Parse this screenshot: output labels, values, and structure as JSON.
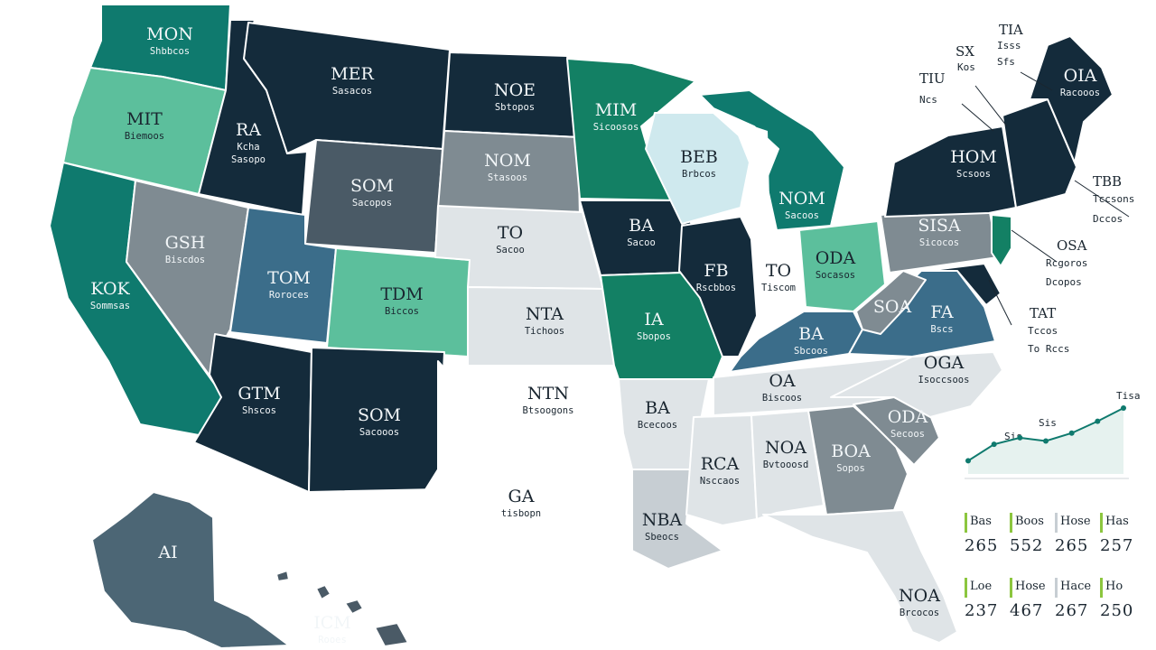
{
  "colors": {
    "navy": "#142b3b",
    "teal": "#0f7a6e",
    "green": "#138064",
    "mint": "#5cbf9c",
    "lightmint": "#cfe9ee",
    "steel": "#3b6d8a",
    "slate": "#4a5a66",
    "gray": "#7f8b92",
    "lightgray": "#c7ced3",
    "pale": "#dfe4e7",
    "alaska": "#4c6675",
    "lime": "#8cc63f"
  },
  "states": [
    {
      "id": "wa",
      "code": "MON",
      "sub": "Shbbcos",
      "color": "teal"
    },
    {
      "id": "or",
      "code": "MIT",
      "sub": "Biemoos",
      "color": "mint"
    },
    {
      "id": "ca",
      "code": "KOK",
      "sub": "Sommsas",
      "color": "teal"
    },
    {
      "id": "nv",
      "code": "GSH",
      "sub": "Biscdos",
      "color": "gray"
    },
    {
      "id": "id",
      "code": "RA",
      "sub": "Kcha",
      "sub2": "Sasopo",
      "color": "navy"
    },
    {
      "id": "mt",
      "code": "MER",
      "sub": "Sasacos",
      "color": "navy"
    },
    {
      "id": "wy",
      "code": "SOM",
      "sub": "Sacopos",
      "color": "slate"
    },
    {
      "id": "ut",
      "code": "TOM",
      "sub": "Roroces",
      "color": "steel"
    },
    {
      "id": "az",
      "code": "GTM",
      "sub": "Shscos",
      "color": "navy"
    },
    {
      "id": "co",
      "code": "TDM",
      "sub": "Biccos",
      "color": "mint"
    },
    {
      "id": "nm",
      "code": "SOM",
      "sub": "Sacooos",
      "color": "navy"
    },
    {
      "id": "nd",
      "code": "NOE",
      "sub": "Sbtopos",
      "color": "navy"
    },
    {
      "id": "sd",
      "code": "NOM",
      "sub": "Stasoos",
      "color": "gray"
    },
    {
      "id": "ne",
      "code": "TO",
      "sub": "Sacoo",
      "color": "pale"
    },
    {
      "id": "ks",
      "code": "NTA",
      "sub": "Tichoos",
      "color": "pale"
    },
    {
      "id": "ok",
      "code": "NTN",
      "sub": "Btsoogons",
      "color": "white"
    },
    {
      "id": "tx",
      "code": "GA",
      "sub": "tisbopn",
      "color": "white"
    },
    {
      "id": "mn",
      "code": "MIM",
      "sub": "Sicoosos",
      "color": "green"
    },
    {
      "id": "ia",
      "code": "BA",
      "sub": "Sacoo",
      "color": "navy"
    },
    {
      "id": "mo",
      "code": "IA",
      "sub": "Sbopos",
      "color": "green"
    },
    {
      "id": "ar",
      "code": "BA",
      "sub": "Bcecoos",
      "color": "pale"
    },
    {
      "id": "la",
      "code": "NBA",
      "sub": "Sbeocs",
      "color": "lightgray"
    },
    {
      "id": "wi",
      "code": "BEB",
      "sub": "Brbcos",
      "color": "lightmint"
    },
    {
      "id": "il",
      "code": "FB",
      "sub": "Rscbbos",
      "color": "navy"
    },
    {
      "id": "mi",
      "code": "NOM",
      "sub": "Sacoos",
      "color": "teal"
    },
    {
      "id": "in",
      "code": "TO",
      "sub": "Tiscom",
      "color": "white"
    },
    {
      "id": "oh",
      "code": "ODA",
      "sub": "Socasos",
      "color": "mint"
    },
    {
      "id": "ky",
      "code": "BA",
      "sub": "Sbcoos",
      "color": "steel"
    },
    {
      "id": "tn",
      "code": "OA",
      "sub": "Biscoos",
      "color": "pale"
    },
    {
      "id": "ms",
      "code": "RCA",
      "sub": "Nsccaos",
      "color": "pale"
    },
    {
      "id": "al",
      "code": "NOA",
      "sub": "Bvtooosd",
      "color": "pale"
    },
    {
      "id": "ga",
      "code": "BOA",
      "sub": "Sopos",
      "color": "gray"
    },
    {
      "id": "fl",
      "code": "NOA",
      "sub": "Brcocos",
      "color": "pale"
    },
    {
      "id": "sc",
      "code": "ODA",
      "sub": "Secoos",
      "color": "gray"
    },
    {
      "id": "nc",
      "code": "OGA",
      "sub": "Isoccsoos",
      "color": "pale"
    },
    {
      "id": "va",
      "code": "FA",
      "sub": "Bscs",
      "color": "steel"
    },
    {
      "id": "wv",
      "code": "SOA",
      "sub": "",
      "color": "gray"
    },
    {
      "id": "pa",
      "code": "SISA",
      "sub": "Sicocos",
      "color": "gray"
    },
    {
      "id": "ny",
      "code": "HOM",
      "sub": "Scsoos",
      "color": "navy"
    },
    {
      "id": "me",
      "code": "OIA",
      "sub": "Racooos",
      "color": "navy"
    },
    {
      "id": "ak",
      "code": "AI",
      "sub": "",
      "color": "alaska"
    },
    {
      "id": "hi",
      "code": "ICM",
      "sub": "Rooes",
      "color": "slate"
    }
  ],
  "annotations": [
    {
      "id": "ann-sx",
      "text": "SX",
      "sub": "Kos"
    },
    {
      "id": "ann-tia",
      "text": "TIA",
      "sub": "Isss",
      "sub2": "Sfs"
    },
    {
      "id": "ann-tiu",
      "text": "TIU",
      "sub": "Ncs"
    },
    {
      "id": "ann-tbb",
      "text": "TBB",
      "sub": "Tccsons",
      "sub2": "Dccos"
    },
    {
      "id": "ann-osa",
      "text": "OSA",
      "sub": "Rcgoros",
      "sub2": "Dcopos"
    },
    {
      "id": "ann-tat",
      "text": "TAT",
      "sub": "Tccos",
      "sub2": "To Rccs"
    }
  ],
  "trend": {
    "labels": [
      "Sis",
      "Sis",
      "Tisa"
    ],
    "values": [
      0.2,
      0.45,
      0.55,
      0.5,
      0.62,
      0.8,
      1.0
    ]
  },
  "legend": [
    {
      "top": "Bas",
      "value": "265",
      "bar": "lime"
    },
    {
      "top": "Boos",
      "value": "552",
      "bar": "lime"
    },
    {
      "top": "Hose",
      "value": "265",
      "bar": "lightgray"
    },
    {
      "top": "Has",
      "value": "257",
      "bar": "lime"
    },
    {
      "top": "Loe",
      "value": "237",
      "bar": "lime"
    },
    {
      "top": "Hose",
      "value": "467",
      "bar": "lime"
    },
    {
      "top": "Hace",
      "value": "267",
      "bar": "lightgray"
    },
    {
      "top": "Ho",
      "value": "250",
      "bar": "lime"
    }
  ]
}
